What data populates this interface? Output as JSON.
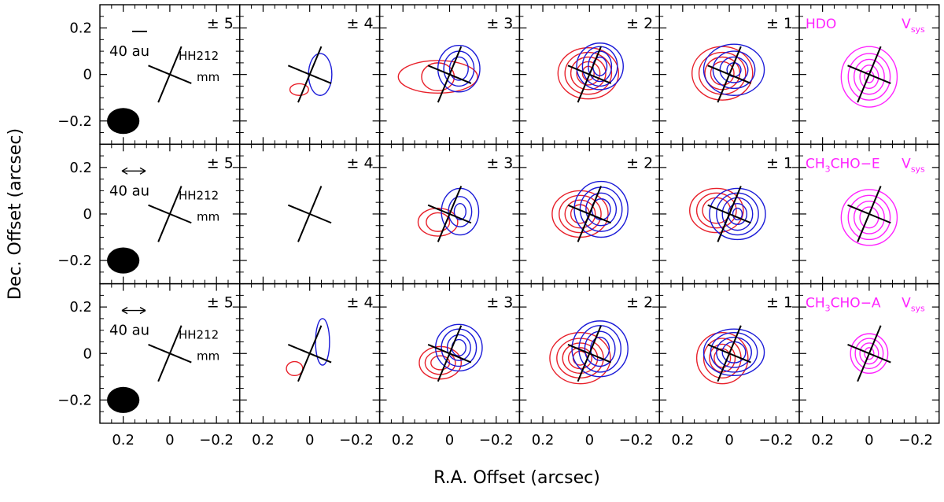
{
  "chart_data": {
    "type": "contour-channel-map",
    "xlabel": "R.A. Offset (arcsec)",
    "ylabel": "Dec. Offset (arcsec)",
    "xlim": [
      0.3,
      -0.3
    ],
    "ylim": [
      -0.3,
      0.3
    ],
    "x_ticks": [
      0.2,
      0,
      -0.2
    ],
    "y_ticks": [
      0.2,
      0,
      -0.2
    ],
    "x_tick_labels": [
      "0.2",
      "0",
      "−0.2"
    ],
    "y_tick_labels": [
      "0.2",
      "0",
      "−0.2"
    ],
    "columns": [
      "± 5",
      "± 4",
      "± 3",
      "± 2",
      "± 1",
      "Vsys"
    ],
    "velocity_offsets": [
      5,
      4,
      3,
      2,
      1,
      0
    ],
    "rows": [
      {
        "molecule": "HDO",
        "molecule_parts": [
          "HDO"
        ],
        "vsys_label": "V",
        "vsys_sub": "sys",
        "scale_label": "40 au",
        "source_label_1": "HH212",
        "source_label_2": "mm",
        "scale_marker": "bar"
      },
      {
        "molecule": "CH3CHO−E",
        "molecule_parts": [
          "CH",
          "3",
          "CHO−E"
        ],
        "vsys_label": "V",
        "vsys_sub": "sys",
        "scale_label": "40 au",
        "source_label_1": "HH212",
        "source_label_2": "mm",
        "scale_marker": "arrow"
      },
      {
        "molecule": "CH3CHO−A",
        "molecule_parts": [
          "CH",
          "3",
          "CHO−A"
        ],
        "vsys_label": "V",
        "vsys_sub": "sys",
        "scale_label": "40 au",
        "source_label_1": "HH212",
        "source_label_2": "mm",
        "scale_marker": "arrow"
      }
    ],
    "colors": {
      "redshifted": "#e8202a",
      "blueshifted": "#1a1ad8",
      "systemic": "#ff22ff",
      "frame": "#000000"
    },
    "beam": {
      "major_arcsec": 0.12,
      "minor_arcsec": 0.1,
      "center": [
        0.2,
        -0.2
      ]
    },
    "cross": {
      "jet_axis_pa_deg": 22.5,
      "disk_axis_pa_deg": 112.5
    },
    "contours": [
      [
        {
          "red": [],
          "blue": [],
          "mag": []
        },
        {
          "red": [
            {
              "c": [
                0.045,
                -0.065
              ],
              "s": [
                [
                  0.04,
                  0.025
                ]
              ]
            }
          ],
          "blue": [
            {
              "c": [
                -0.045,
                0.0
              ],
              "s": [
                [
                  0.05,
                  0.09
                ]
              ]
            }
          ],
          "mag": []
        },
        {
          "red": [
            {
              "c": [
                0.05,
                -0.01
              ],
              "s": [
                [
                  0.17,
                  0.07
                ],
                [
                  0.07,
                  0.06
                ]
              ]
            }
          ],
          "blue": [
            {
              "c": [
                -0.04,
                0.025
              ],
              "s": [
                [
                  0.09,
                  0.1
                ],
                [
                  0.065,
                  0.075
                ],
                [
                  0.04,
                  0.05
                ]
              ]
            }
          ],
          "mag": []
        },
        {
          "red": [
            {
              "c": [
                0.005,
                0.005
              ],
              "s": [
                [
                  0.13,
                  0.11
                ],
                [
                  0.1,
                  0.09
                ],
                [
                  0.075,
                  0.07
                ],
                [
                  0.05,
                  0.05
                ],
                [
                  0.025,
                  0.03
                ]
              ]
            }
          ],
          "blue": [
            {
              "c": [
                -0.045,
                0.035
              ],
              "s": [
                [
                  0.1,
                  0.1
                ],
                [
                  0.075,
                  0.085
                ],
                [
                  0.05,
                  0.065
                ],
                [
                  0.03,
                  0.04
                ]
              ]
            }
          ],
          "mag": []
        },
        {
          "red": [
            {
              "c": [
                0.03,
                0.005
              ],
              "s": [
                [
                  0.13,
                  0.115
                ],
                [
                  0.1,
                  0.09
                ],
                [
                  0.075,
                  0.07
                ],
                [
                  0.05,
                  0.05
                ]
              ]
            }
          ],
          "blue": [
            {
              "c": [
                -0.02,
                0.02
              ],
              "s": [
                [
                  0.13,
                  0.11
                ],
                [
                  0.09,
                  0.08
                ],
                [
                  0.06,
                  0.055
                ],
                [
                  0.03,
                  0.03
                ]
              ]
            }
          ],
          "mag": []
        },
        {
          "red": [],
          "blue": [],
          "mag": [
            {
              "c": [
                0.0,
                -0.01
              ],
              "s": [
                [
                  0.12,
                  0.13
                ],
                [
                  0.09,
                  0.1
                ],
                [
                  0.065,
                  0.075
                ],
                [
                  0.04,
                  0.05
                ],
                [
                  0.02,
                  0.025
                ]
              ]
            }
          ]
        }
      ],
      [
        {
          "red": [],
          "blue": [],
          "mag": []
        },
        {
          "red": [],
          "blue": [],
          "mag": []
        },
        {
          "red": [
            {
              "c": [
                0.05,
                -0.035
              ],
              "s": [
                [
                  0.085,
                  0.06
                ],
                [
                  0.05,
                  0.04
                ]
              ]
            }
          ],
          "blue": [
            {
              "c": [
                -0.045,
                0.01
              ],
              "s": [
                [
                  0.08,
                  0.1
                ],
                [
                  0.05,
                  0.065
                ],
                [
                  0.025,
                  0.035
                ]
              ]
            }
          ],
          "mag": []
        },
        {
          "red": [
            {
              "c": [
                0.04,
                0.0
              ],
              "s": [
                [
                  0.12,
                  0.1
                ],
                [
                  0.09,
                  0.08
                ],
                [
                  0.065,
                  0.06
                ],
                [
                  0.04,
                  0.04
                ]
              ]
            }
          ],
          "blue": [
            {
              "c": [
                -0.05,
                0.02
              ],
              "s": [
                [
                  0.115,
                  0.12
                ],
                [
                  0.09,
                  0.095
                ],
                [
                  0.065,
                  0.07
                ],
                [
                  0.04,
                  0.045
                ]
              ]
            }
          ],
          "mag": []
        },
        {
          "red": [
            {
              "c": [
                0.055,
                0.015
              ],
              "s": [
                [
                  0.115,
                  0.095
                ],
                [
                  0.085,
                  0.075
                ],
                [
                  0.06,
                  0.055
                ]
              ]
            }
          ],
          "blue": [
            {
              "c": [
                -0.035,
                0.0
              ],
              "s": [
                [
                  0.12,
                  0.11
                ],
                [
                  0.09,
                  0.09
                ],
                [
                  0.065,
                  0.07
                ],
                [
                  0.04,
                  0.045
                ],
                [
                  0.02,
                  0.025
                ]
              ]
            }
          ],
          "mag": []
        },
        {
          "red": [],
          "blue": [],
          "mag": [
            {
              "c": [
                0.0,
                -0.015
              ],
              "s": [
                [
                  0.12,
                  0.12
                ],
                [
                  0.09,
                  0.095
                ],
                [
                  0.065,
                  0.07
                ],
                [
                  0.04,
                  0.045
                ]
              ]
            }
          ]
        }
      ],
      [
        {
          "red": [],
          "blue": [],
          "mag": []
        },
        {
          "red": [
            {
              "c": [
                0.065,
                -0.065
              ],
              "s": [
                [
                  0.035,
                  0.03
                ]
              ]
            }
          ],
          "blue": [
            {
              "c": [
                -0.055,
                0.05
              ],
              "s": [
                [
                  0.03,
                  0.1
                ]
              ]
            }
          ],
          "mag": []
        },
        {
          "red": [
            {
              "c": [
                0.04,
                -0.04
              ],
              "s": [
                [
                  0.09,
                  0.07
                ],
                [
                  0.065,
                  0.05
                ],
                [
                  0.04,
                  0.03
                ]
              ]
            }
          ],
          "blue": [
            {
              "c": [
                -0.04,
                0.025
              ],
              "s": [
                [
                  0.1,
                  0.1
                ],
                [
                  0.075,
                  0.08
                ],
                [
                  0.05,
                  0.055
                ],
                [
                  0.03,
                  0.035
                ]
              ]
            }
          ],
          "mag": []
        },
        {
          "red": [
            {
              "c": [
                0.04,
                -0.02
              ],
              "s": [
                [
                  0.13,
                  0.11
                ],
                [
                  0.1,
                  0.085
                ],
                [
                  0.075,
                  0.065
                ],
                [
                  0.05,
                  0.045
                ],
                [
                  0.03,
                  0.03
                ]
              ]
            }
          ],
          "blue": [
            {
              "c": [
                -0.045,
                0.02
              ],
              "s": [
                [
                  0.12,
                  0.12
                ],
                [
                  0.09,
                  0.1
                ],
                [
                  0.065,
                  0.075
                ],
                [
                  0.04,
                  0.05
                ]
              ]
            }
          ],
          "mag": []
        },
        {
          "red": [
            {
              "c": [
                0.03,
                -0.02
              ],
              "s": [
                [
                  0.11,
                  0.11
                ],
                [
                  0.08,
                  0.085
                ],
                [
                  0.055,
                  0.06
                ],
                [
                  0.035,
                  0.04
                ]
              ]
            }
          ],
          "blue": [
            {
              "c": [
                -0.02,
                0.005
              ],
              "s": [
                [
                  0.13,
                  0.1
                ],
                [
                  0.1,
                  0.085
                ],
                [
                  0.075,
                  0.065
                ],
                [
                  0.05,
                  0.045
                ]
              ]
            }
          ],
          "mag": []
        },
        {
          "red": [],
          "blue": [],
          "mag": [
            {
              "c": [
                0.0,
                0.0
              ],
              "s": [
                [
                  0.08,
                  0.085
                ],
                [
                  0.06,
                  0.065
                ],
                [
                  0.04,
                  0.045
                ],
                [
                  0.02,
                  0.025
                ]
              ]
            }
          ]
        }
      ]
    ]
  }
}
